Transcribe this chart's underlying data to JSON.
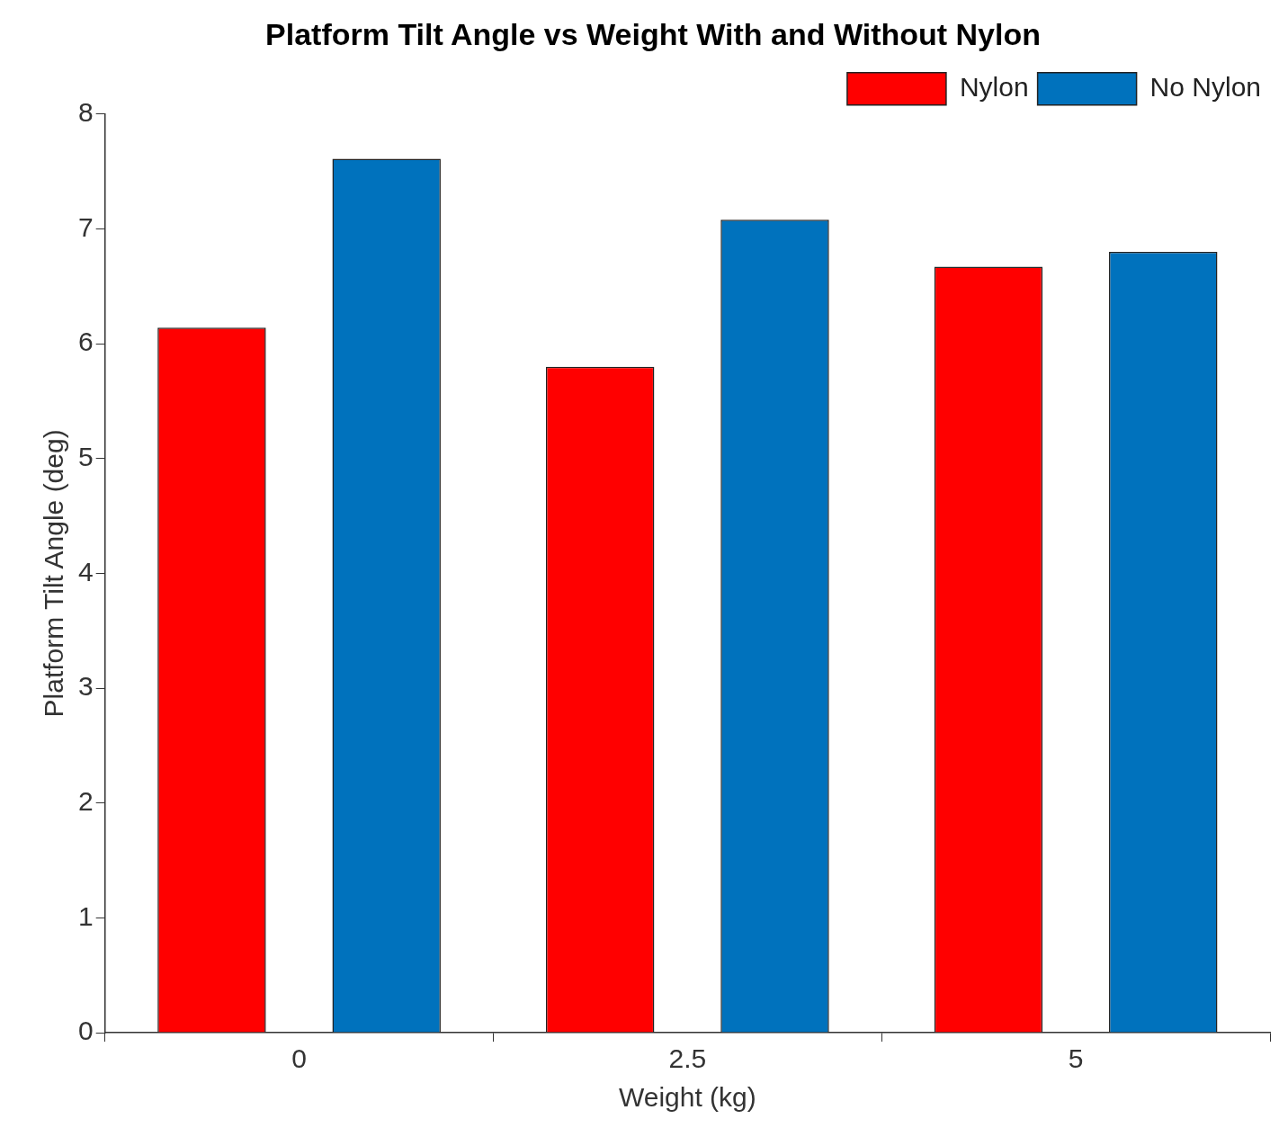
{
  "chart_data": {
    "type": "bar",
    "title": "Platform Tilt Angle vs Weight With and Without Nylon",
    "xlabel": "Weight (kg)",
    "ylabel": "Platform Tilt Angle (deg)",
    "categories": [
      "0",
      "2.5",
      "5"
    ],
    "series": [
      {
        "name": "Nylon",
        "color": "#ff0000",
        "values": [
          6.14,
          5.8,
          6.67
        ]
      },
      {
        "name": "No Nylon",
        "color": "#0072bd",
        "values": [
          7.61,
          7.08,
          6.8
        ]
      }
    ],
    "ylim": [
      0,
      8
    ],
    "yticks": [
      0,
      1,
      2,
      3,
      4,
      5,
      6,
      7,
      8
    ],
    "grid": false,
    "legend": "top right"
  }
}
